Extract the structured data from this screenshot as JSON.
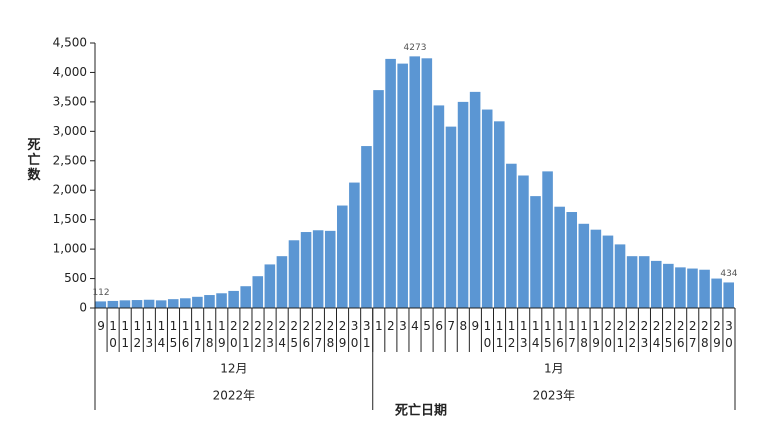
{
  "chart_data": {
    "type": "bar",
    "y_label": "死亡数",
    "x_label": "死亡日期",
    "categories": [
      "9",
      "10",
      "11",
      "12",
      "13",
      "14",
      "15",
      "16",
      "17",
      "18",
      "19",
      "20",
      "21",
      "22",
      "23",
      "24",
      "25",
      "26",
      "27",
      "28",
      "29",
      "30",
      "31",
      "1",
      "2",
      "3",
      "4",
      "5",
      "6",
      "7",
      "8",
      "9",
      "10",
      "11",
      "12",
      "13",
      "14",
      "15",
      "16",
      "17",
      "18",
      "19",
      "20",
      "21",
      "22",
      "23",
      "24",
      "25",
      "26",
      "27",
      "28",
      "29",
      "30"
    ],
    "values": [
      112,
      120,
      130,
      135,
      140,
      130,
      150,
      165,
      190,
      220,
      250,
      290,
      370,
      540,
      740,
      880,
      1150,
      1290,
      1320,
      1310,
      1740,
      2130,
      2750,
      3700,
      4230,
      4150,
      4273,
      4240,
      3440,
      3080,
      3500,
      3670,
      3370,
      3170,
      2450,
      2250,
      1900,
      2320,
      1720,
      1630,
      1430,
      1330,
      1230,
      1080,
      880,
      880,
      800,
      750,
      690,
      670,
      650,
      500,
      434
    ],
    "value_labels": [
      "112",
      null,
      null,
      null,
      null,
      null,
      null,
      null,
      null,
      null,
      null,
      null,
      null,
      null,
      null,
      null,
      null,
      null,
      null,
      null,
      null,
      null,
      null,
      null,
      null,
      null,
      "4273",
      null,
      null,
      null,
      null,
      null,
      null,
      null,
      null,
      null,
      null,
      null,
      null,
      null,
      null,
      null,
      null,
      null,
      null,
      null,
      null,
      null,
      null,
      null,
      null,
      null,
      "434"
    ],
    "months": [
      "12月",
      "1月"
    ],
    "years": [
      "2022年",
      "2023年"
    ],
    "color": "#5b96d3",
    "ylim": [
      0,
      4500
    ],
    "yticks": [
      0,
      500,
      {
        "value": 1000,
        "label": "1,000"
      },
      {
        "value": 1500,
        "label": "1,500"
      },
      {
        "value": 2000,
        "label": "2,000"
      },
      {
        "value": 2500,
        "label": "2,500"
      },
      {
        "value": 3000,
        "label": "3,000"
      },
      {
        "value": 3500,
        "label": "3,500"
      },
      {
        "value": 4000,
        "label": "4,000"
      },
      {
        "value": 4500,
        "label": "4,500"
      }
    ],
    "grid": false
  }
}
